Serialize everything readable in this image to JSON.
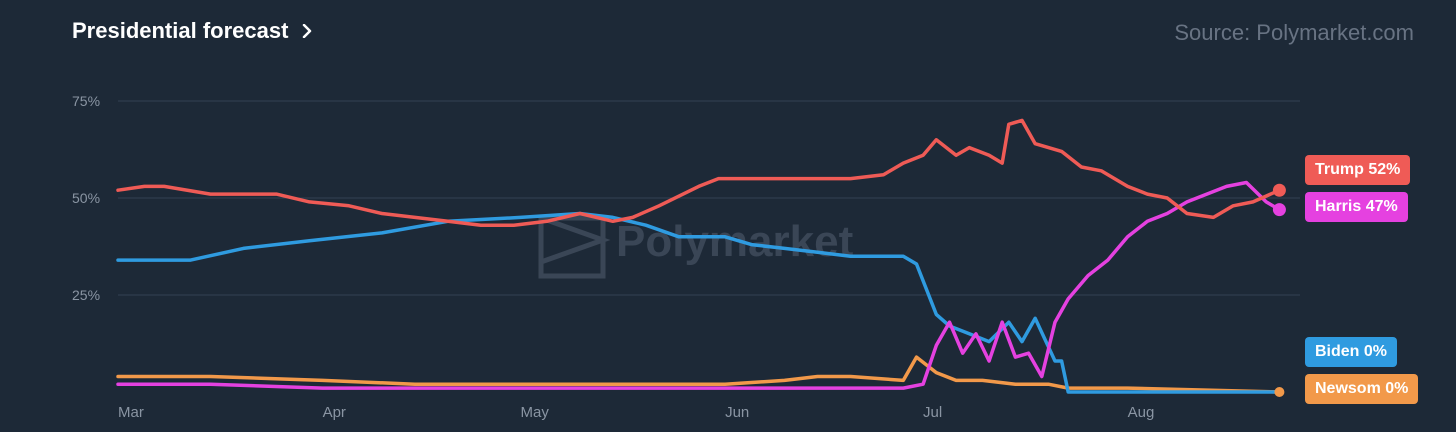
{
  "header": {
    "title": "Presidential forecast",
    "source": "Source: Polymarket.com",
    "watermark": "Polymarket"
  },
  "chart_data": {
    "type": "line",
    "title": "Presidential forecast",
    "xlabel": "",
    "ylabel": "",
    "ylim": [
      0,
      80
    ],
    "yticks": [
      25,
      50,
      75
    ],
    "ytick_labels": [
      "25%",
      "50%",
      "75%"
    ],
    "xticks": [
      "Mar",
      "Apr",
      "May",
      "Jun",
      "Jul",
      "Aug"
    ],
    "grid": true,
    "legend": "end-labels-right",
    "x_domain": [
      "2024-03-01",
      "2024-08-25"
    ],
    "series": [
      {
        "name": "Trump",
        "label": "Trump 52%",
        "color": "#ef5b56",
        "x": [
          "2024-03-01",
          "2024-03-05",
          "2024-03-08",
          "2024-03-15",
          "2024-03-18",
          "2024-03-25",
          "2024-03-30",
          "2024-04-05",
          "2024-04-10",
          "2024-04-15",
          "2024-04-20",
          "2024-04-25",
          "2024-04-30",
          "2024-05-05",
          "2024-05-10",
          "2024-05-15",
          "2024-05-18",
          "2024-05-22",
          "2024-05-28",
          "2024-05-31",
          "2024-06-05",
          "2024-06-10",
          "2024-06-15",
          "2024-06-20",
          "2024-06-25",
          "2024-06-28",
          "2024-07-01",
          "2024-07-03",
          "2024-07-06",
          "2024-07-08",
          "2024-07-11",
          "2024-07-13",
          "2024-07-14",
          "2024-07-16",
          "2024-07-18",
          "2024-07-20",
          "2024-07-22",
          "2024-07-25",
          "2024-07-28",
          "2024-08-01",
          "2024-08-04",
          "2024-08-07",
          "2024-08-10",
          "2024-08-14",
          "2024-08-17",
          "2024-08-20",
          "2024-08-24"
        ],
        "values": [
          52,
          53,
          53,
          51,
          51,
          51,
          49,
          48,
          46,
          45,
          44,
          43,
          43,
          44,
          46,
          44,
          45,
          48,
          53,
          55,
          55,
          55,
          55,
          55,
          56,
          59,
          61,
          65,
          61,
          63,
          61,
          59,
          69,
          70,
          64,
          63,
          62,
          58,
          57,
          53,
          51,
          50,
          46,
          45,
          48,
          49,
          52
        ]
      },
      {
        "name": "Harris",
        "label": "Harris 47%",
        "color": "#e541e0",
        "x": [
          "2024-03-01",
          "2024-03-15",
          "2024-04-01",
          "2024-04-15",
          "2024-05-01",
          "2024-05-15",
          "2024-06-01",
          "2024-06-15",
          "2024-06-28",
          "2024-07-01",
          "2024-07-03",
          "2024-07-05",
          "2024-07-07",
          "2024-07-09",
          "2024-07-11",
          "2024-07-13",
          "2024-07-15",
          "2024-07-17",
          "2024-07-19",
          "2024-07-21",
          "2024-07-23",
          "2024-07-26",
          "2024-07-29",
          "2024-08-01",
          "2024-08-04",
          "2024-08-07",
          "2024-08-10",
          "2024-08-13",
          "2024-08-16",
          "2024-08-19",
          "2024-08-22",
          "2024-08-24"
        ],
        "values": [
          2,
          2,
          1,
          1,
          1,
          1,
          1,
          1,
          1,
          2,
          12,
          18,
          10,
          15,
          8,
          18,
          9,
          10,
          4,
          18,
          24,
          30,
          34,
          40,
          44,
          46,
          49,
          51,
          53,
          54,
          49,
          47
        ]
      },
      {
        "name": "Biden",
        "label": "Biden 0%",
        "color": "#2f9be0",
        "x": [
          "2024-03-01",
          "2024-03-05",
          "2024-03-12",
          "2024-03-20",
          "2024-03-30",
          "2024-04-10",
          "2024-04-20",
          "2024-05-01",
          "2024-05-10",
          "2024-05-15",
          "2024-05-20",
          "2024-05-25",
          "2024-06-01",
          "2024-06-05",
          "2024-06-10",
          "2024-06-15",
          "2024-06-20",
          "2024-06-25",
          "2024-06-28",
          "2024-06-30",
          "2024-07-03",
          "2024-07-05",
          "2024-07-08",
          "2024-07-11",
          "2024-07-14",
          "2024-07-16",
          "2024-07-18",
          "2024-07-21",
          "2024-07-22",
          "2024-07-23",
          "2024-08-24"
        ],
        "values": [
          34,
          34,
          34,
          37,
          39,
          41,
          44,
          45,
          46,
          45,
          43,
          40,
          40,
          38,
          37,
          36,
          35,
          35,
          35,
          33,
          20,
          17,
          15,
          13,
          18,
          13,
          19,
          8,
          8,
          0,
          0
        ]
      },
      {
        "name": "Newsom",
        "label": "Newsom 0%",
        "color": "#f2994a",
        "x": [
          "2024-03-01",
          "2024-03-15",
          "2024-04-01",
          "2024-04-15",
          "2024-05-01",
          "2024-05-15",
          "2024-06-01",
          "2024-06-10",
          "2024-06-15",
          "2024-06-20",
          "2024-06-28",
          "2024-06-30",
          "2024-07-03",
          "2024-07-06",
          "2024-07-10",
          "2024-07-15",
          "2024-07-20",
          "2024-07-23",
          "2024-08-01",
          "2024-08-24"
        ],
        "values": [
          4,
          4,
          3,
          2,
          2,
          2,
          2,
          3,
          4,
          4,
          3,
          9,
          5,
          3,
          3,
          2,
          2,
          1,
          1,
          0
        ]
      }
    ]
  }
}
